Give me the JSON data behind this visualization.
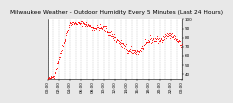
{
  "title": "Milwaukee Weather - Outdoor Humidity Every 5 Minutes (Last 24 Hours)",
  "background_color": "#e8e8e8",
  "plot_bg_color": "#ffffff",
  "grid_color": "#aaaaaa",
  "line_color": "#ff0000",
  "ylim": [
    35,
    100
  ],
  "xlim": [
    0,
    287
  ],
  "yticks": [
    40,
    50,
    60,
    70,
    80,
    90,
    100
  ],
  "num_points": 288,
  "title_fontsize": 4.2,
  "tick_fontsize": 3.0
}
